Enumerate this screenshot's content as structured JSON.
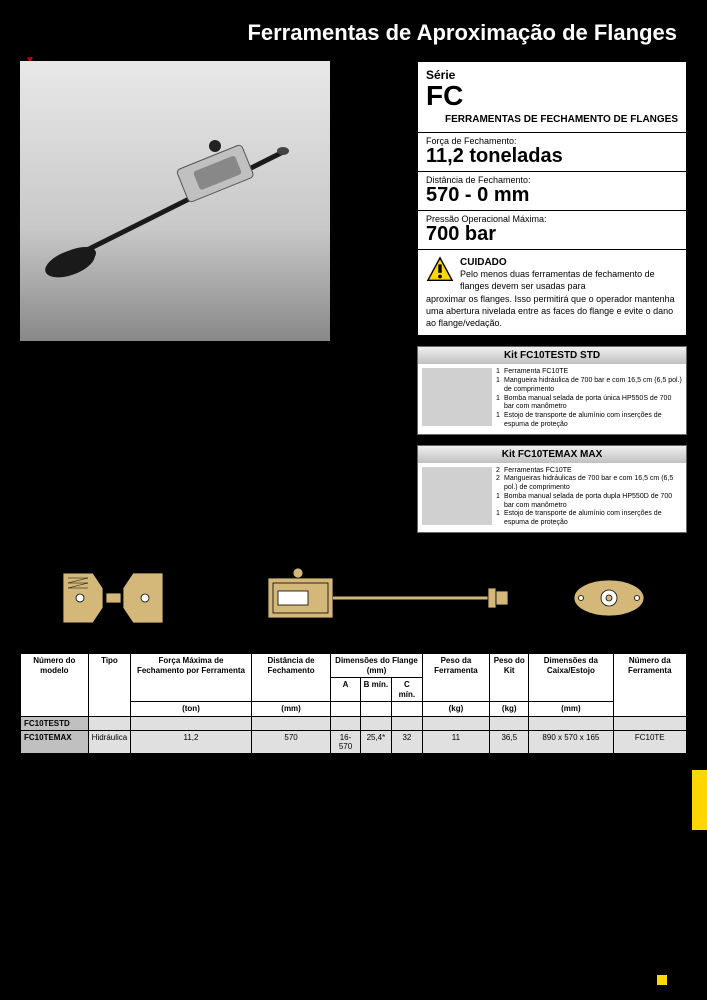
{
  "page_title": "Ferramentas de Aproximação de Flanges",
  "series": {
    "label": "Série",
    "code": "FC",
    "subtitle": "FERRAMENTAS DE FECHAMENTO DE FLANGES"
  },
  "specs": [
    {
      "label": "Força de Fechamento:",
      "value": "11,2 toneladas"
    },
    {
      "label": "Distância de Fechamento:",
      "value": "570 - 0 mm"
    },
    {
      "label": "Pressão Operacional Máxima:",
      "value": "700 bar"
    }
  ],
  "warning": {
    "title": "CUIDADO",
    "text_lead": "Pelo menos duas ferramentas de fechamento de flanges devem ser usadas para",
    "text_rest": "aproximar os flanges. Isso permitirá que o operador mantenha uma abertura nivelada entre as faces do flange e evite o dano ao flange/vedação."
  },
  "kits": [
    {
      "header": "Kit FC10TESTD STD",
      "items": [
        {
          "n": "1",
          "t": "Ferramenta FC10TE"
        },
        {
          "n": "1",
          "t": "Mangueira hidráulica de 700 bar e com 16,5 cm (6,5 pol.) de comprimento"
        },
        {
          "n": "1",
          "t": "Bomba manual selada de porta única HP550S de 700 bar com manômetro"
        },
        {
          "n": "1",
          "t": "Estojo de transporte de alumínio com inserções de espuma de proteção"
        }
      ]
    },
    {
      "header": "Kit FC10TEMAX MAX",
      "items": [
        {
          "n": "2",
          "t": "Ferramentas FC10TE"
        },
        {
          "n": "2",
          "t": "Mangueiras hidráulicas de 700 bar e com 16,5 cm (6,5 pol.) de comprimento"
        },
        {
          "n": "1",
          "t": "Bomba manual selada de porta dupla HP550D de 700 bar com manômetro"
        },
        {
          "n": "1",
          "t": "Estojo de transporte de alumínio com inserções de espuma de proteção"
        }
      ]
    }
  ],
  "table": {
    "headers": {
      "model": "Número do modelo",
      "type": "Tipo",
      "force": "Força Máxima de Fechamento por Ferramenta",
      "distance": "Distância de Fechamento",
      "flange": "Dimensões do Flange (mm)",
      "a": "A",
      "b": "B mín.",
      "c": "C mín.",
      "tool_weight": "Peso da Ferramenta",
      "kit_weight": "Peso do Kit",
      "case_dim": "Dimensões da Caixa/Estojo",
      "tool_num": "Número da Ferramenta",
      "ton": "(ton)",
      "mm": "(mm)",
      "kg": "(kg)"
    },
    "rows": [
      {
        "model": "FC10TESTD",
        "cells": [
          "",
          "",
          "",
          "",
          "",
          "",
          "",
          "",
          "",
          ""
        ]
      },
      {
        "model": "FC10TEMAX",
        "cells": [
          "Hidráulica",
          "11,2",
          "570",
          "16-570",
          "25,4*",
          "32",
          "11",
          "36,5",
          "890 x 570 x 165",
          "FC10TE"
        ]
      }
    ]
  }
}
